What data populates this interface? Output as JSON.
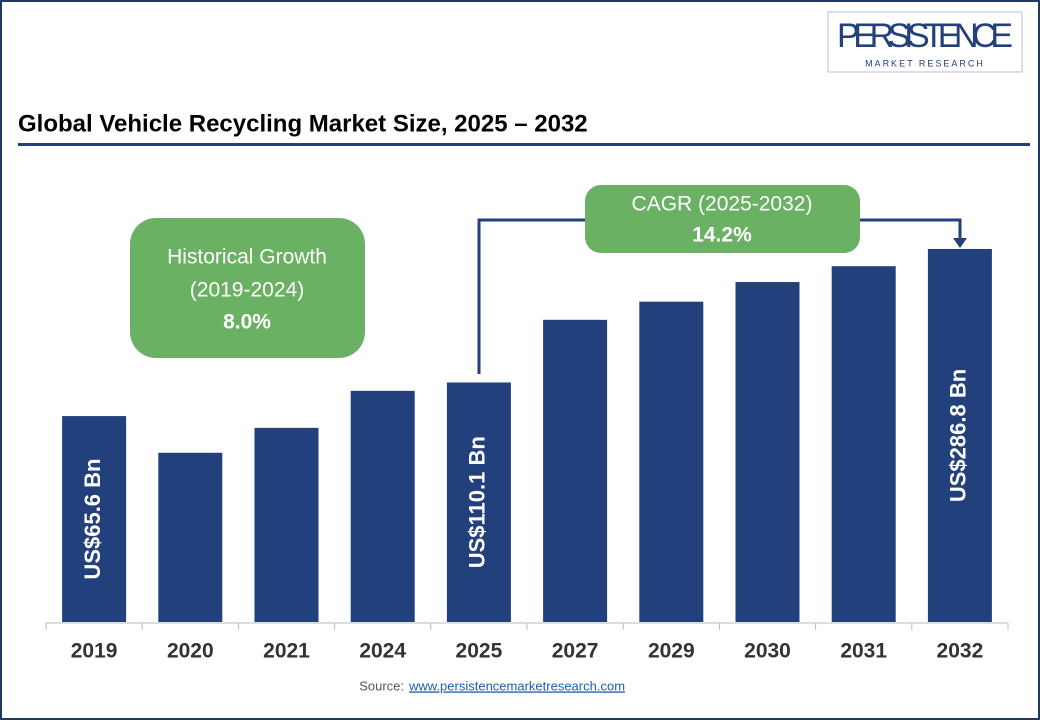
{
  "logo": {
    "name": "PERSISTENCE",
    "tagline": "MARKET RESEARCH"
  },
  "chart_data": {
    "type": "bar",
    "title": "Global Vehicle Recycling Market Size, 2025 – 2032",
    "categories": [
      "2019",
      "2020",
      "2021",
      "2024",
      "2025",
      "2027",
      "2029",
      "2030",
      "2031",
      "2032"
    ],
    "values": [
      65.6,
      17,
      50,
      99,
      110.1,
      193,
      217,
      243,
      264,
      286.8
    ],
    "value_labels": [
      "US$65.6 Bn",
      null,
      null,
      null,
      "US$110.1 Bn",
      null,
      null,
      null,
      null,
      "US$286.8 Bn"
    ],
    "color": "#22407c",
    "ylim": [
      -207,
      300
    ],
    "annotations": [
      {
        "lines": [
          "Historical Growth",
          "(2019-2024)"
        ],
        "value": "8.0%"
      },
      {
        "lines": [
          "CAGR (2025-2032)"
        ],
        "value": "14.2%"
      }
    ],
    "source": {
      "label": "Source:",
      "url": "www.persistencemarketresearch.com"
    }
  }
}
